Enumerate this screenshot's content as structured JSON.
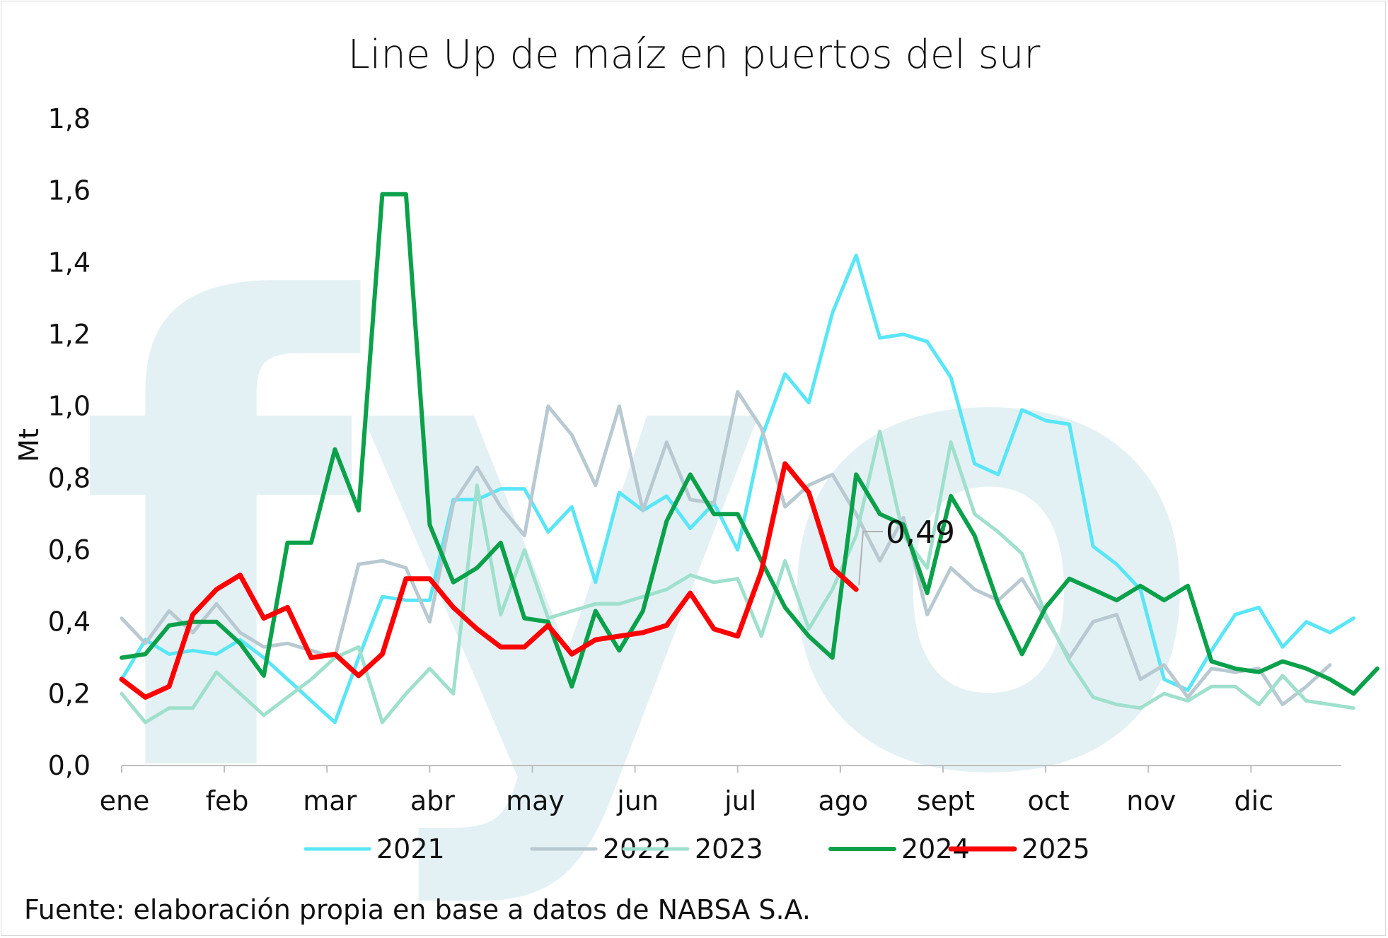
{
  "chart_data": {
    "type": "line",
    "title": "Line Up de maíz en puertos del sur",
    "ylabel": "Mt",
    "xlabel": "",
    "ylim": [
      0,
      1.8
    ],
    "yticks": [
      "0,0",
      "0,2",
      "0,4",
      "0,6",
      "0,8",
      "1,0",
      "1,2",
      "1,4",
      "1,6",
      "1,8"
    ],
    "months": [
      "ene",
      "feb",
      "mar",
      "abr",
      "may",
      "jun",
      "jul",
      "ago",
      "sept",
      "oct",
      "nov",
      "dic"
    ],
    "weeks_per_year": 52,
    "legend_position": "bottom",
    "grid": false,
    "watermark": "fyo",
    "source": "Fuente: elaboración propia en base a datos de NABSA S.A.",
    "annotation": {
      "text": "0,49",
      "series": "2025",
      "week": 36
    },
    "series": [
      {
        "name": "2021",
        "color": "#59e6f6",
        "width": 5,
        "values": [
          0.24,
          0.35,
          0.31,
          0.32,
          0.31,
          0.35,
          0.3,
          0.24,
          0.18,
          0.12,
          0.3,
          0.47,
          0.46,
          0.46,
          0.74,
          0.74,
          0.77,
          0.77,
          0.65,
          0.72,
          0.51,
          0.76,
          0.71,
          0.75,
          0.66,
          0.73,
          0.6,
          0.91,
          1.09,
          1.01,
          1.26,
          1.42,
          1.19,
          1.2,
          1.18,
          1.08,
          0.84,
          0.81,
          0.99,
          0.96,
          0.95,
          0.61,
          0.56,
          0.49,
          0.24,
          0.21,
          0.32,
          0.42,
          0.44,
          0.33,
          0.4,
          0.37,
          0.41
        ]
      },
      {
        "name": "2022",
        "color": "#b8c9d1",
        "width": 5,
        "values": [
          0.41,
          0.34,
          0.43,
          0.37,
          0.45,
          0.37,
          0.33,
          0.34,
          0.32,
          0.3,
          0.56,
          0.57,
          0.55,
          0.4,
          0.73,
          0.83,
          0.72,
          0.64,
          1.0,
          0.92,
          0.78,
          1.0,
          0.71,
          0.9,
          0.74,
          0.73,
          1.04,
          0.94,
          0.72,
          0.78,
          0.81,
          0.7,
          0.57,
          0.69,
          0.42,
          0.55,
          0.49,
          0.46,
          0.52,
          0.41,
          0.3,
          0.4,
          0.42,
          0.24,
          0.28,
          0.19,
          0.27,
          0.26,
          0.27,
          0.17,
          0.22,
          0.28
        ]
      },
      {
        "name": "2023",
        "color": "#9fe0cd",
        "width": 5,
        "values": [
          0.2,
          0.12,
          0.16,
          0.16,
          0.26,
          0.2,
          0.14,
          0.19,
          0.24,
          0.3,
          0.33,
          0.12,
          0.2,
          0.27,
          0.2,
          0.78,
          0.42,
          0.6,
          0.41,
          0.43,
          0.45,
          0.45,
          0.47,
          0.49,
          0.53,
          0.51,
          0.52,
          0.36,
          0.57,
          0.38,
          0.49,
          0.64,
          0.93,
          0.64,
          0.55,
          0.9,
          0.7,
          0.65,
          0.59,
          0.42,
          0.29,
          0.19,
          0.17,
          0.16,
          0.2,
          0.18,
          0.22,
          0.22,
          0.17,
          0.25,
          0.18,
          0.17,
          0.16
        ]
      },
      {
        "name": "2024",
        "color": "#0aa14a",
        "width": 6,
        "values": [
          0.3,
          0.31,
          0.39,
          0.4,
          0.4,
          0.34,
          0.25,
          0.62,
          0.62,
          0.88,
          0.71,
          1.59,
          1.59,
          0.67,
          0.51,
          0.55,
          0.62,
          0.41,
          0.4,
          0.22,
          0.43,
          0.32,
          0.43,
          0.68,
          0.81,
          0.7,
          0.7,
          0.57,
          0.44,
          0.36,
          0.3,
          0.81,
          0.7,
          0.67,
          0.48,
          0.75,
          0.64,
          0.45,
          0.31,
          0.44,
          0.52,
          0.49,
          0.46,
          0.5,
          0.46,
          0.5,
          0.29,
          0.27,
          0.26,
          0.29,
          0.27,
          0.24,
          0.2,
          0.27
        ]
      },
      {
        "name": "2025",
        "color": "#ff0000",
        "width": 7,
        "values": [
          0.24,
          0.19,
          0.22,
          0.42,
          0.49,
          0.53,
          0.41,
          0.44,
          0.3,
          0.31,
          0.25,
          0.31,
          0.52,
          0.52,
          0.44,
          0.38,
          0.33,
          0.33,
          0.39,
          0.31,
          0.35,
          0.36,
          0.37,
          0.39,
          0.48,
          0.38,
          0.36,
          0.54,
          0.84,
          0.76,
          0.55,
          0.49
        ]
      }
    ]
  }
}
